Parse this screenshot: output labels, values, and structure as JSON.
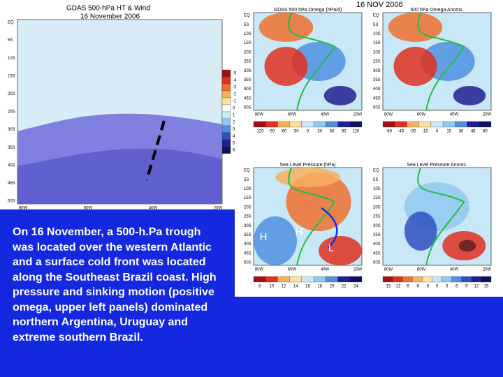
{
  "left_map": {
    "title": "GDAS 500-hPa HT & Wind",
    "date": "16 November 2006",
    "lat_labels": [
      "EQ",
      "5S",
      "10S",
      "15S",
      "20S",
      "25S",
      "30S",
      "35S",
      "40S",
      "45S",
      "50S"
    ],
    "lon_labels": [
      "80W",
      "60W",
      "40W",
      "20W"
    ],
    "colorbar_labels": [
      "-5",
      "-4",
      "-3",
      "-2",
      "-1",
      "0",
      "1",
      "2",
      "3",
      "4",
      "5",
      "6"
    ]
  },
  "right_maps": {
    "date": "16 NOV 2006",
    "panels": [
      {
        "title": "GDAS 500 hPa Omega (hPa/d)",
        "lat_labels": [
          "EQ",
          "5S",
          "10S",
          "15S",
          "20S",
          "25S",
          "30S",
          "35S",
          "40S",
          "45S",
          "50S"
        ],
        "lon_labels": [
          "80W",
          "60W",
          "40W",
          "20W"
        ],
        "colorbar_labels": [
          "-120",
          "-90",
          "-60",
          "-30",
          "0",
          "30",
          "60",
          "90",
          "120"
        ]
      },
      {
        "title": "500 hPa Omega Anoms.",
        "lat_labels": [
          "EQ",
          "5S",
          "10S",
          "15S",
          "20S",
          "25S",
          "30S",
          "35S",
          "40S",
          "45S",
          "50S"
        ],
        "lon_labels": [
          "80W",
          "60W",
          "40W",
          "20W"
        ],
        "colorbar_labels": [
          "-60",
          "-45",
          "-30",
          "-15",
          "0",
          "15",
          "30",
          "45",
          "60"
        ]
      },
      {
        "title": "Sea Level Pressure (hPa)",
        "lat_labels": [
          "EQ",
          "5S",
          "10S",
          "15S",
          "20S",
          "25S",
          "30S",
          "35S",
          "40S",
          "45S",
          "50S"
        ],
        "lon_labels": [
          "80W",
          "60W",
          "40W",
          "20W"
        ],
        "colorbar_labels": [
          "8",
          "10",
          "12",
          "14",
          "16",
          "18",
          "20",
          "22",
          "24"
        ]
      },
      {
        "title": "Sea Level Pressure Anoms.",
        "lat_labels": [
          "EQ",
          "5S",
          "10S",
          "15S",
          "20S",
          "25S",
          "30S",
          "35S",
          "40S",
          "45S",
          "50S"
        ],
        "lon_labels": [
          "80W",
          "60W",
          "40W",
          "20W"
        ],
        "colorbar_labels": [
          "-15",
          "-12",
          "-9",
          "-6",
          "-3",
          "0",
          "3",
          "6",
          "9",
          "12",
          "15"
        ]
      }
    ],
    "markers": [
      "H",
      "H",
      "L"
    ]
  },
  "caption": "On 16 November, a 500-h.Pa trough was located over the western Atlantic and a surface cold front was located along the Southeast Brazil coast. High pressure and sinking motion (positive omega, upper left panels) dominated northern Argentina, Uruguay and extreme southern Brazil."
}
